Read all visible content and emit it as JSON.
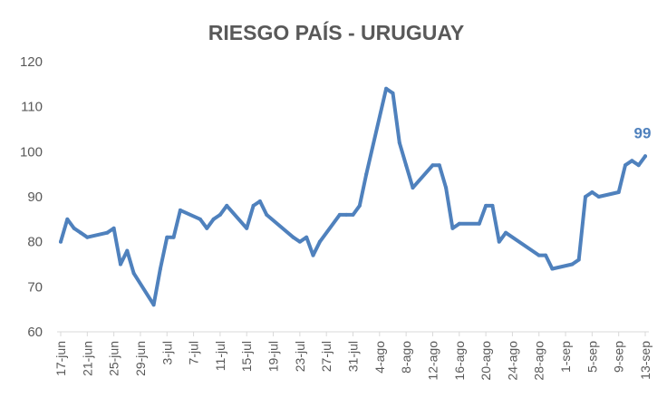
{
  "chart_data": {
    "type": "line",
    "title": "RIESGO PAÍS - URUGUAY",
    "xlabel": "",
    "ylabel": "",
    "ylim": [
      60,
      120
    ],
    "yticks": [
      60,
      70,
      80,
      90,
      100,
      110,
      120
    ],
    "grid": false,
    "legend": "none",
    "line_color": "#4F81BD",
    "axis_color": "#D9D9D9",
    "xtick_labels": [
      "17-jun",
      "21-jun",
      "25-jun",
      "29-jun",
      "3-jul",
      "7-jul",
      "11-jul",
      "15-jul",
      "19-jul",
      "23-jul",
      "27-jul",
      "31-jul",
      "4-ago",
      "8-ago",
      "12-ago",
      "16-ago",
      "20-ago",
      "24-ago",
      "28-ago",
      "1-sep",
      "5-sep",
      "9-sep",
      "13-sep"
    ],
    "end_label": "99",
    "series": [
      {
        "x": [
          "17-jun",
          "18-jun",
          "19-jun",
          "20-jun",
          "21-jun",
          "24-jun",
          "25-jun",
          "26-jun",
          "27-jun",
          "28-jun",
          "1-jul",
          "2-jul",
          "3-jul",
          "4-jul",
          "5-jul",
          "8-jul",
          "9-jul",
          "10-jul",
          "11-jul",
          "12-jul",
          "15-jul",
          "16-jul",
          "17-jul",
          "18-jul",
          "22-jul",
          "23-jul",
          "24-jul",
          "25-jul",
          "26-jul",
          "29-jul",
          "30-jul",
          "31-jul",
          "1-ago",
          "2-ago",
          "5-ago",
          "6-ago",
          "7-ago",
          "8-ago",
          "9-ago",
          "12-ago",
          "13-ago",
          "14-ago",
          "15-ago",
          "16-ago",
          "19-ago",
          "20-ago",
          "21-ago",
          "22-ago",
          "23-ago",
          "28-ago",
          "29-ago",
          "30-ago",
          "2-sep",
          "3-sep",
          "4-sep",
          "5-sep",
          "6-sep",
          "9-sep",
          "10-sep",
          "11-sep",
          "12-sep",
          "13-sep"
        ],
        "values": [
          80,
          85,
          83,
          82,
          81,
          82,
          83,
          75,
          78,
          73,
          66,
          74,
          81,
          81,
          87,
          85,
          83,
          85,
          86,
          88,
          83,
          88,
          89,
          86,
          81,
          80,
          81,
          77,
          80,
          86,
          86,
          86,
          88,
          95,
          114,
          113,
          102,
          97,
          92,
          97,
          97,
          92,
          83,
          84,
          84,
          88,
          88,
          80,
          82,
          77,
          77,
          74,
          75,
          76,
          90,
          91,
          90,
          91,
          97,
          98,
          97,
          99
        ]
      }
    ]
  }
}
